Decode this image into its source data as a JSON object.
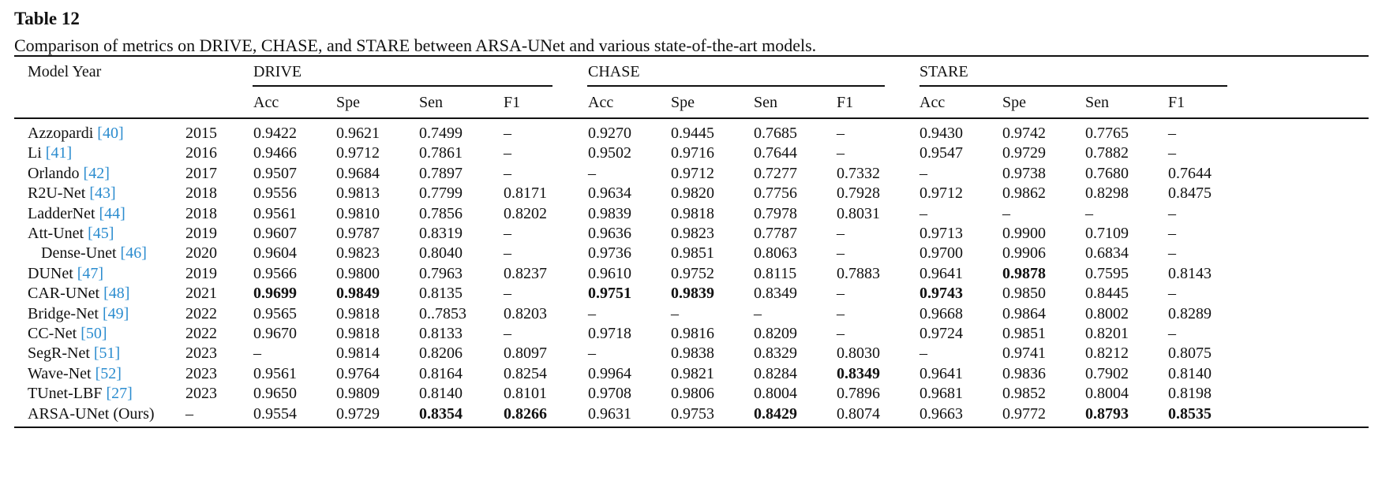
{
  "label": "Table 12",
  "caption": "Comparison of metrics on DRIVE, CHASE, and STARE between ARSA-UNet and various state-of-the-art models.",
  "header": {
    "model_year": "Model Year",
    "groups": [
      "DRIVE",
      "CHASE",
      "STARE"
    ],
    "metrics": [
      "Acc",
      "Spe",
      "Sen",
      "F1"
    ]
  },
  "rows": [
    {
      "model": "Azzopardi",
      "ref": "[40]",
      "year": "2015",
      "values": [
        "0.9422",
        "0.9621",
        "0.7499",
        "–",
        "0.9270",
        "0.9445",
        "0.7685",
        "–",
        "0.9430",
        "0.9742",
        "0.7765",
        "–"
      ]
    },
    {
      "model": "Li",
      "ref": "[41]",
      "year": "2016",
      "values": [
        "0.9466",
        "0.9712",
        "0.7861",
        "–",
        "0.9502",
        "0.9716",
        "0.7644",
        "–",
        "0.9547",
        "0.9729",
        "0.7882",
        "–"
      ]
    },
    {
      "model": "Orlando",
      "ref": "[42]",
      "year": "2017",
      "values": [
        "0.9507",
        "0.9684",
        "0.7897",
        "–",
        "–",
        "0.9712",
        "0.7277",
        "0.7332",
        "–",
        "0.9738",
        "0.7680",
        "0.7644"
      ]
    },
    {
      "model": "R2U-Net",
      "ref": "[43]",
      "year": "2018",
      "values": [
        "0.9556",
        "0.9813",
        "0.7799",
        "0.8171",
        "0.9634",
        "0.9820",
        "0.7756",
        "0.7928",
        "0.9712",
        "0.9862",
        "0.8298",
        "0.8475"
      ]
    },
    {
      "model": "LadderNet",
      "ref": "[44]",
      "year": "2018",
      "values": [
        "0.9561",
        "0.9810",
        "0.7856",
        "0.8202",
        "0.9839",
        "0.9818",
        "0.7978",
        "0.8031",
        "–",
        "–",
        "–",
        "–"
      ]
    },
    {
      "model": "Att-Unet",
      "ref": "[45]",
      "year": "2019",
      "values": [
        "0.9607",
        "0.9787",
        "0.8319",
        "–",
        "0.9636",
        "0.9823",
        "0.7787",
        "–",
        "0.9713",
        "0.9900",
        "0.7109",
        "–"
      ]
    },
    {
      "model": "Dense-Unet",
      "ref": "[46]",
      "year": "2020",
      "values": [
        "0.9604",
        "0.9823",
        "0.8040",
        "–",
        "0.9736",
        "0.9851",
        "0.8063",
        "–",
        "0.9700",
        "0.9906",
        "0.6834",
        "–"
      ]
    },
    {
      "model": "DUNet",
      "ref": "[47]",
      "year": "2019",
      "values": [
        "0.9566",
        "0.9800",
        "0.7963",
        "0.8237",
        "0.9610",
        "0.9752",
        "0.8115",
        "0.7883",
        "0.9641",
        "0.9878",
        "0.7595",
        "0.8143"
      ]
    },
    {
      "model": "CAR-UNet",
      "ref": "[48]",
      "year": "2021",
      "values": [
        "0.9699",
        "0.9849",
        "0.8135",
        "–",
        "0.9751",
        "0.9839",
        "0.8349",
        "–",
        "0.9743",
        "0.9850",
        "0.8445",
        "–"
      ]
    },
    {
      "model": "Bridge-Net",
      "ref": "[49]",
      "year": "2022",
      "values": [
        "0.9565",
        "0.9818",
        "0..7853",
        "0.8203",
        "–",
        "–",
        "–",
        "–",
        "0.9668",
        "0.9864",
        "0.8002",
        "0.8289"
      ]
    },
    {
      "model": "CC-Net",
      "ref": "[50]",
      "year": "2022",
      "values": [
        "0.9670",
        "0.9818",
        "0.8133",
        "–",
        "0.9718",
        "0.9816",
        "0.8209",
        "–",
        "0.9724",
        "0.9851",
        "0.8201",
        "–"
      ]
    },
    {
      "model": "SegR-Net",
      "ref": "[51]",
      "year": "2023",
      "values": [
        "–",
        "0.9814",
        "0.8206",
        "0.8097",
        "–",
        "0.9838",
        "0.8329",
        "0.8030",
        "–",
        "0.9741",
        "0.8212",
        "0.8075"
      ]
    },
    {
      "model": "Wave-Net",
      "ref": "[52]",
      "year": "2023",
      "values": [
        "0.9561",
        "0.9764",
        "0.8164",
        "0.8254",
        "0.9964",
        "0.9821",
        "0.8284",
        "0.8349",
        "0.9641",
        "0.9836",
        "0.7902",
        "0.8140"
      ]
    },
    {
      "model": "TUnet-LBF",
      "ref": "[27]",
      "year": "2023",
      "values": [
        "0.9650",
        "0.9809",
        "0.8140",
        "0.8101",
        "0.9708",
        "0.9806",
        "0.8004",
        "0.7896",
        "0.9681",
        "0.9852",
        "0.8004",
        "0.8198"
      ]
    },
    {
      "model": "ARSA-UNet (Ours)",
      "ref": "",
      "year": "–",
      "values": [
        "0.9554",
        "0.9729",
        "0.8354",
        "0.8266",
        "0.9631",
        "0.9753",
        "0.8429",
        "0.8074",
        "0.9663",
        "0.9772",
        "0.8793",
        "0.8535"
      ]
    }
  ],
  "bold_cells": [
    [
      8,
      0
    ],
    [
      8,
      1
    ],
    [
      8,
      4
    ],
    [
      8,
      5
    ],
    [
      8,
      8
    ],
    [
      7,
      9
    ],
    [
      12,
      7
    ],
    [
      14,
      2
    ],
    [
      14,
      3
    ],
    [
      14,
      6
    ],
    [
      14,
      10
    ],
    [
      14,
      11
    ]
  ],
  "ref_color": "#2b8ccf"
}
